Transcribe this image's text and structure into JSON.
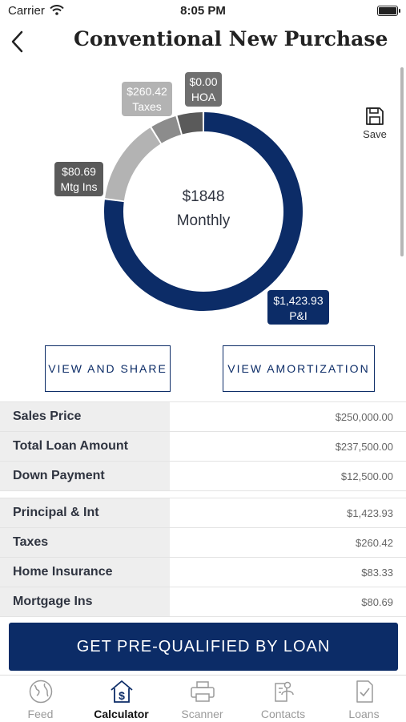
{
  "status_bar": {
    "carrier": "Carrier",
    "time": "8:05 PM"
  },
  "header": {
    "title": "Conventional New Purchase",
    "back_icon": "chevron-left-icon"
  },
  "save": {
    "label": "Save",
    "icon": "floppy-disk-icon"
  },
  "donut": {
    "center_value": "$1848",
    "center_label": "Monthly",
    "segments": [
      {
        "name": "P&I",
        "amount": "$1,423.93",
        "value": 1423.93,
        "color": "#0c2c67"
      },
      {
        "name": "HOA",
        "amount": "$0.00",
        "value": 0.0,
        "color": "#6f6f6f"
      },
      {
        "name": "Taxes",
        "amount": "$260.42",
        "value": 260.42,
        "color": "#b3b3b3"
      },
      {
        "name": "Home Insurance",
        "value": 83.33,
        "color": "#8c8c8c"
      },
      {
        "name": "Mtg Ins",
        "amount": "$80.69",
        "value": 80.69,
        "color": "#5a5a5a"
      }
    ],
    "callouts": {
      "hoa": {
        "amount": "$0.00",
        "label": "HOA"
      },
      "taxes": {
        "amount": "$260.42",
        "label": "Taxes"
      },
      "mtg_ins": {
        "amount": "$80.69",
        "label": "Mtg Ins"
      },
      "pi": {
        "amount": "$1,423.93",
        "label": "P&I"
      }
    }
  },
  "actions": {
    "view_share": "VIEW AND SHARE",
    "view_amortization": "VIEW AMORTIZATION"
  },
  "loan_summary": [
    {
      "label": "Sales Price",
      "value": "$250,000.00"
    },
    {
      "label": "Total Loan Amount",
      "value": "$237,500.00"
    },
    {
      "label": "Down Payment",
      "value": "$12,500.00"
    }
  ],
  "payment_breakdown": [
    {
      "label": "Principal & Int",
      "value": "$1,423.93"
    },
    {
      "label": "Taxes",
      "value": "$260.42"
    },
    {
      "label": "Home Insurance",
      "value": "$83.33"
    },
    {
      "label": "Mortgage Ins",
      "value": "$80.69"
    }
  ],
  "cta": {
    "label": "GET PRE-QUALIFIED BY LOAN"
  },
  "tabs": [
    {
      "label": "Feed",
      "icon": "globe-icon",
      "active": false
    },
    {
      "label": "Calculator",
      "icon": "house-dollar-icon",
      "active": true
    },
    {
      "label": "Scanner",
      "icon": "printer-icon",
      "active": false
    },
    {
      "label": "Contacts",
      "icon": "contacts-icon",
      "active": false
    },
    {
      "label": "Loans",
      "icon": "document-check-icon",
      "active": false
    }
  ]
}
